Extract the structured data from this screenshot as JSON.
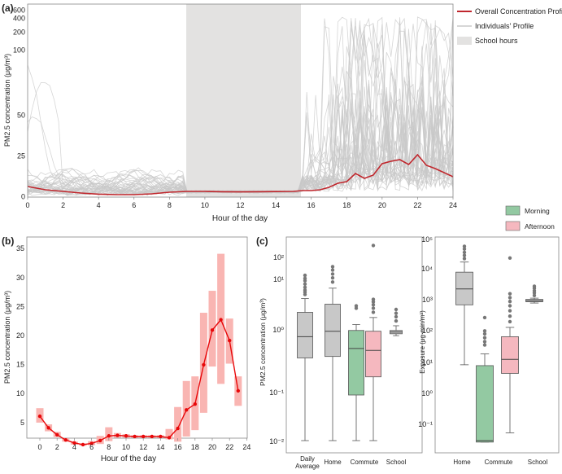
{
  "panels": {
    "a": {
      "label": "(a)",
      "ylabel": "PM2.5 concentration (μg/m³)",
      "xlabel": "Hour of the day",
      "yticks": [
        "0",
        "25",
        "50",
        "100",
        "200",
        "400",
        "600"
      ],
      "xticks": [
        "0",
        "2",
        "4",
        "6",
        "8",
        "10",
        "12",
        "14",
        "16",
        "18",
        "20",
        "22",
        "24"
      ],
      "legend": {
        "overall": "Overall Concentration Profile",
        "individuals": "Individuals' Profile",
        "school": "School hours"
      }
    },
    "b": {
      "label": "(b)",
      "ylabel": "PM2.5 concentration (μg/m³)",
      "xlabel": "Hour of the day",
      "yticks": [
        "5",
        "10",
        "15",
        "20",
        "25",
        "30",
        "35"
      ],
      "xticks": [
        "0",
        "2",
        "4",
        "6",
        "8",
        "10",
        "12",
        "14",
        "16",
        "18",
        "20",
        "22",
        "24"
      ]
    },
    "c": {
      "label": "(c)",
      "ylabel": "PM2.5 concentration (μg/m³)",
      "ylabel2": "Exposure (μg·min/m³)",
      "yticks_left": [
        "10⁻²",
        "10⁻¹",
        "10⁰",
        "10¹",
        "10²"
      ],
      "yticks_right": [
        "10⁻¹",
        "10⁰",
        "10¹",
        "10²",
        "10³",
        "10⁴",
        "10⁵"
      ],
      "categories_left": [
        "Daily Average",
        "Home",
        "Commute",
        "School"
      ],
      "categories_right": [
        "Home",
        "Commute",
        "School"
      ],
      "legend": {
        "morning": "Morning",
        "afternoon": "Afternoon"
      }
    }
  },
  "colors": {
    "overall": "#c0272d",
    "individual": "#c8c8c8",
    "school_band": "#e3e2e1",
    "hourly": "#e8080a",
    "iqr": "#f9b5b2",
    "grey_box": "#c8c8c8",
    "morning": "#93c9a2",
    "afternoon": "#f5b8bf"
  },
  "chart_data": [
    {
      "id": "a",
      "type": "line",
      "title": "",
      "xlabel": "Hour of the day",
      "ylabel": "PM2.5 concentration (μg/m³)",
      "xlim": [
        0,
        24
      ],
      "school_hours": [
        9,
        15.5
      ],
      "overall": {
        "x": [
          0,
          1,
          2,
          3,
          4,
          5,
          6,
          7,
          8,
          9,
          10,
          11,
          12,
          13,
          14,
          15,
          15.5,
          16,
          16.5,
          17,
          17.5,
          18,
          18.5,
          19,
          19.5,
          20,
          20.5,
          21,
          21.5,
          22,
          22.5,
          23,
          24
        ],
        "y": [
          6,
          4,
          3,
          2,
          1.3,
          1,
          1,
          1.5,
          2.5,
          3,
          3,
          2.8,
          2.7,
          2.8,
          2.9,
          3,
          3.5,
          3.5,
          4,
          5.5,
          8,
          9,
          14,
          11,
          13,
          20,
          21.5,
          22.5,
          19.5,
          25.5,
          19,
          17,
          12
        ]
      }
    },
    {
      "id": "b",
      "type": "line",
      "xlabel": "Hour of the day",
      "ylabel": "PM2.5 concentration (μg/m³)",
      "xlim": [
        -1.5,
        24
      ],
      "ylim": [
        0,
        35
      ],
      "x": [
        0,
        1,
        2,
        3,
        4,
        5,
        6,
        7,
        8,
        9,
        10,
        11,
        12,
        13,
        14,
        15,
        16,
        17,
        18,
        19,
        20,
        21,
        22,
        23
      ],
      "values": [
        5.9,
        3.9,
        2.7,
        1.8,
        1.3,
        1.0,
        1.2,
        1.7,
        2.5,
        2.6,
        2.5,
        2.4,
        2.4,
        2.4,
        2.4,
        2.2,
        3.8,
        7.0,
        8.0,
        14.8,
        20.8,
        22.6,
        19.0,
        10.3
      ],
      "iqr_low": [
        4.8,
        3.3,
        2.3,
        1.5,
        1.0,
        0.8,
        0.9,
        1.1,
        1.6,
        2.2,
        2.2,
        2.2,
        2.2,
        2.2,
        2.2,
        1.9,
        1.5,
        2.4,
        3.5,
        6.5,
        14.5,
        11.5,
        15.0,
        7.7
      ],
      "iqr_high": [
        7.3,
        4.5,
        3.2,
        2.1,
        1.5,
        1.2,
        1.6,
        2.5,
        4.0,
        3.0,
        2.8,
        2.6,
        2.6,
        2.6,
        2.6,
        3.7,
        7.5,
        12.0,
        12.8,
        23.8,
        27.6,
        34.0,
        22.8,
        12.8
      ]
    },
    {
      "id": "c-left",
      "type": "box",
      "scale": "log",
      "ylabel": "PM2.5 concentration (μg/m³)",
      "ylim": [
        0.006,
        500
      ],
      "boxes": [
        {
          "category": "Daily Average",
          "group": "all",
          "whisker_low": 0.01,
          "q1": 0.65,
          "median": 1.9,
          "q3": 6.5,
          "whisker_high": 13,
          "outliers": [
            16,
            18,
            20,
            23,
            27,
            32,
            36,
            42
          ]
        },
        {
          "category": "Home",
          "group": "all",
          "whisker_low": 0.01,
          "q1": 0.7,
          "median": 2.5,
          "q3": 9.8,
          "whisker_high": 22,
          "outliers": [
            30,
            37,
            45,
            55,
            65
          ]
        },
        {
          "category": "Commute",
          "group": "Morning",
          "whisker_low": 0.01,
          "q1": 0.1,
          "median": 1.05,
          "q3": 2.6,
          "whisker_high": 3.5,
          "outliers": [
            8,
            9
          ]
        },
        {
          "category": "Commute",
          "group": "Afternoon",
          "whisker_low": 0.01,
          "q1": 0.25,
          "median": 0.95,
          "q3": 2.5,
          "whisker_high": 5.0,
          "outliers": [
            6.5,
            8,
            9.5,
            11,
            12.5,
            190
          ]
        },
        {
          "category": "School",
          "group": "all",
          "whisker_low": 2.0,
          "q1": 2.2,
          "median": 2.4,
          "q3": 2.6,
          "whisker_high": 3.3,
          "outliers": [
            4.2,
            5.2,
            6.2,
            7.5
          ]
        }
      ]
    },
    {
      "id": "c-right",
      "type": "box",
      "scale": "log",
      "ylabel": "Exposure (μg·min/m³)",
      "ylim": [
        0.025,
        100000
      ],
      "boxes": [
        {
          "category": "Home",
          "group": "all",
          "whisker_low": 8,
          "q1": 700,
          "median": 2300,
          "q3": 8000,
          "whisker_high": 17000,
          "outliers": [
            22000,
            28000,
            35000,
            45000,
            55000
          ]
        },
        {
          "category": "Commute",
          "group": "Morning",
          "whisker_low": 0.025,
          "q1": 0.025,
          "median": 0.028,
          "q3": 7.5,
          "whisker_high": 18,
          "outliers": [
            35,
            45,
            60,
            80,
            100,
            270
          ]
        },
        {
          "category": "Commute",
          "group": "Afternoon",
          "whisker_low": 0.05,
          "q1": 4.2,
          "median": 12,
          "q3": 65,
          "whisker_high": 130,
          "outliers": [
            200,
            300,
            450,
            650,
            900,
            1200,
            1600,
            23000
          ]
        },
        {
          "category": "School",
          "group": "all",
          "whisker_low": 800,
          "q1": 880,
          "median": 950,
          "q3": 1050,
          "whisker_high": 1150,
          "outliers": [
            1400,
            1700,
            2000,
            2400,
            2800
          ]
        }
      ]
    }
  ]
}
